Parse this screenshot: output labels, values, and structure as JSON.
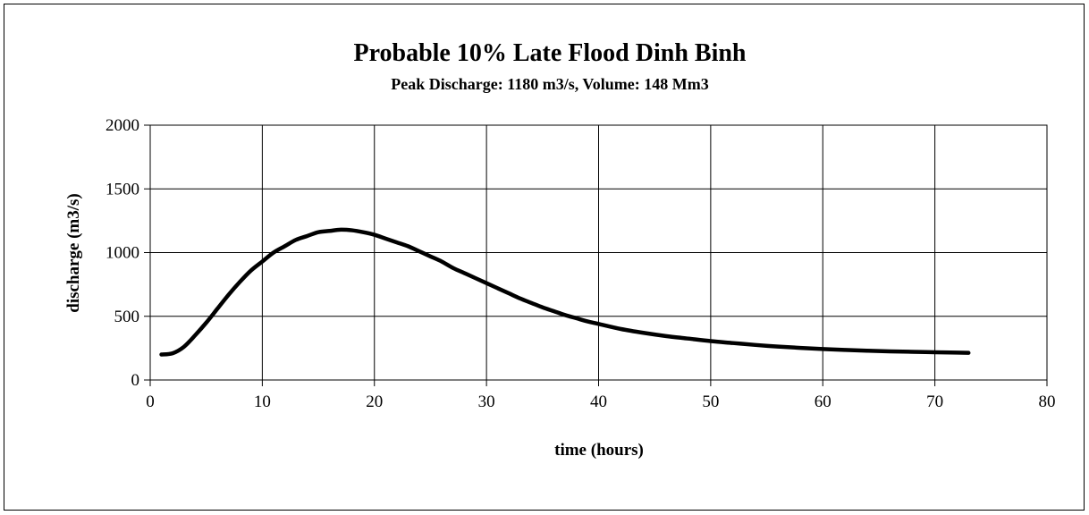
{
  "chart_data": {
    "type": "line",
    "title": "Probable 10% Late Flood Dinh Binh",
    "subtitle": "Peak Discharge: 1180 m3/s, Volume: 148 Mm3",
    "xlabel": "time (hours)",
    "ylabel": "discharge (m3/s)",
    "xlim": [
      0,
      80
    ],
    "ylim": [
      0,
      2000
    ],
    "xticks": [
      0,
      10,
      20,
      30,
      40,
      50,
      60,
      70,
      80
    ],
    "yticks": [
      0,
      500,
      1000,
      1500,
      2000
    ],
    "grid": true,
    "line_color": "#000000",
    "series": [
      {
        "x": [
          1,
          2,
          3,
          4,
          5,
          6,
          7,
          8,
          9,
          10,
          11,
          12,
          13,
          14,
          15,
          16,
          17,
          18,
          19,
          20,
          21,
          22,
          23,
          24,
          25,
          26,
          27,
          28,
          29,
          30,
          31,
          32,
          33,
          34,
          35,
          36,
          37,
          38,
          39,
          40,
          42,
          44,
          46,
          48,
          50,
          52,
          54,
          56,
          58,
          60,
          62,
          64,
          66,
          68,
          70,
          72,
          73
        ],
        "y": [
          200,
          210,
          260,
          350,
          450,
          560,
          670,
          770,
          860,
          930,
          1000,
          1050,
          1100,
          1130,
          1160,
          1170,
          1180,
          1175,
          1160,
          1140,
          1110,
          1080,
          1050,
          1010,
          970,
          930,
          880,
          840,
          800,
          760,
          720,
          680,
          640,
          605,
          570,
          540,
          510,
          485,
          460,
          440,
          400,
          370,
          345,
          325,
          305,
          290,
          275,
          262,
          252,
          243,
          236,
          230,
          225,
          221,
          218,
          215,
          213
        ]
      }
    ]
  }
}
